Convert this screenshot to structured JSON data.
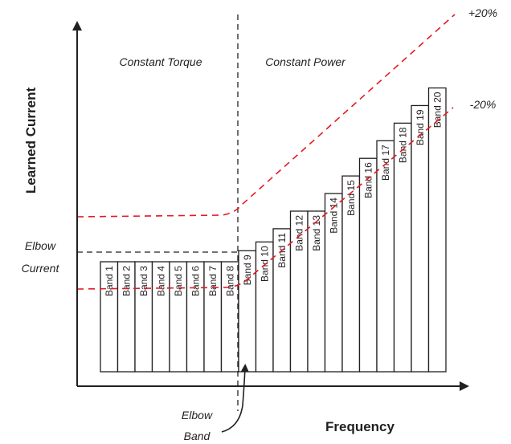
{
  "axes": {
    "y_label": "Learned Current",
    "x_label": "Frequency"
  },
  "regions": {
    "left": "Constant Torque",
    "right": "Constant Power"
  },
  "annotations": {
    "elbow_current_line1": "Elbow",
    "elbow_current_line2": "Current",
    "elbow_band_line1": "Elbow",
    "elbow_band_line2": "Band"
  },
  "tolerance": {
    "upper": "+20%",
    "lower": "-20%",
    "color": "#e31b23"
  },
  "bands": [
    {
      "label": "Band 1",
      "height": 1.0
    },
    {
      "label": "Band 2",
      "height": 1.0
    },
    {
      "label": "Band 3",
      "height": 1.0
    },
    {
      "label": "Band 4",
      "height": 1.0
    },
    {
      "label": "Band 5",
      "height": 1.0
    },
    {
      "label": "Band 6",
      "height": 1.0
    },
    {
      "label": "Band 7",
      "height": 1.0
    },
    {
      "label": "Band 8",
      "height": 1.0
    },
    {
      "label": "Band 9",
      "height": 1.1
    },
    {
      "label": "Band 10",
      "height": 1.18
    },
    {
      "label": "Band 11",
      "height": 1.3
    },
    {
      "label": "Band 12",
      "height": 1.46
    },
    {
      "label": "Band 13",
      "height": 1.46
    },
    {
      "label": "Band 14",
      "height": 1.62
    },
    {
      "label": "Band 15",
      "height": 1.78
    },
    {
      "label": "Band 16",
      "height": 1.94
    },
    {
      "label": "Band 17",
      "height": 2.1
    },
    {
      "label": "Band 18",
      "height": 2.26
    },
    {
      "label": "Band 19",
      "height": 2.42
    },
    {
      "label": "Band 20",
      "height": 2.58
    }
  ]
}
